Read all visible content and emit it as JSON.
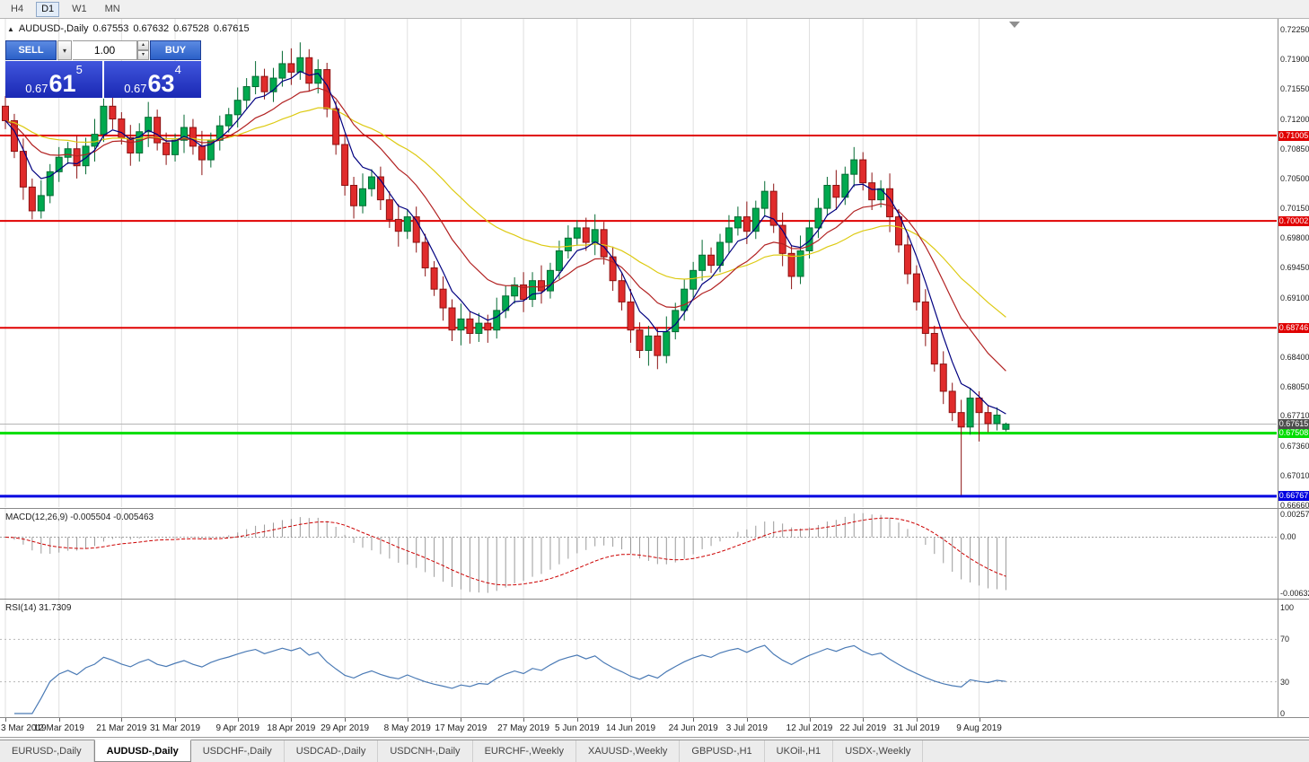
{
  "toolbar": {
    "timeframes": [
      "H4",
      "D1",
      "W1",
      "MN"
    ],
    "active": "D1"
  },
  "chart_header": {
    "marker": "▲",
    "title": "AUDUSD-,Daily",
    "open": "0.67553",
    "high": "0.67632",
    "low": "0.67528",
    "close": "0.67615"
  },
  "trade_panel": {
    "sell_label": "SELL",
    "buy_label": "BUY",
    "volume": "1.00",
    "dropdown_icon": "▾",
    "bid": {
      "prefix": "0.67",
      "big": "61",
      "sup": "5"
    },
    "ask": {
      "prefix": "0.67",
      "big": "63",
      "sup": "4"
    }
  },
  "current_price_tag": "0.67615",
  "macd_panel": {
    "label": "MACD(12,26,9) -0.005504 -0.005463",
    "axis": [
      "0.002574",
      "0.00",
      "-0.00632"
    ]
  },
  "rsi_panel": {
    "label": "RSI(14) 31.7309",
    "axis": [
      "100",
      "70",
      "30",
      "0"
    ],
    "levels": [
      70,
      30
    ]
  },
  "tabs": [
    {
      "label": "EURUSD-,Daily",
      "active": false
    },
    {
      "label": "AUDUSD-,Daily",
      "active": true
    },
    {
      "label": "USDCHF-,Daily",
      "active": false
    },
    {
      "label": "USDCAD-,Daily",
      "active": false
    },
    {
      "label": "USDCNH-,Daily",
      "active": false
    },
    {
      "label": "EURCHF-,Weekly",
      "active": false
    },
    {
      "label": "XAUUSD-,Weekly",
      "active": false
    },
    {
      "label": "GBPUSD-,H1",
      "active": false
    },
    {
      "label": "UKOil-,H1",
      "active": false
    },
    {
      "label": "USDX-,Weekly",
      "active": false
    }
  ],
  "colors": {
    "bull": "#00a94f",
    "bull_edge": "#056a33",
    "bear": "#e02b2b",
    "bear_edge": "#8c1212",
    "ma_fast": "#000080",
    "ma_mid": "#b22222",
    "ma_slow": "#ddca12",
    "macd_hist": "#9a9a9a",
    "macd_signal": "#cc0000",
    "rsi_line": "#4a7ab5",
    "grid": "#e0e0e0",
    "current_line": "#b5b5b5",
    "current_tag_bg": "#4d4d4d"
  },
  "chart_data": {
    "type": "candlestick",
    "symbol": "AUDUSD-",
    "timeframe": "Daily",
    "price_labels": [
      "0.72250",
      "0.71900",
      "0.71550",
      "0.71200",
      "0.70850",
      "0.70500",
      "0.70150",
      "0.69800",
      "0.69450",
      "0.69100",
      "0.68750",
      "0.68400",
      "0.68050",
      "0.67710",
      "0.67360",
      "0.67010",
      "0.66660"
    ],
    "date_ticks": [
      {
        "label": "3 Mar 2019",
        "i": 0
      },
      {
        "label": "12 Mar 2019",
        "i": 6
      },
      {
        "label": "21 Mar 2019",
        "i": 13
      },
      {
        "label": "31 Mar 2019",
        "i": 19
      },
      {
        "label": "9 Apr 2019",
        "i": 26
      },
      {
        "label": "18 Apr 2019",
        "i": 32
      },
      {
        "label": "29 Apr 2019",
        "i": 38
      },
      {
        "label": "8 May 2019",
        "i": 45
      },
      {
        "label": "17 May 2019",
        "i": 51
      },
      {
        "label": "27 May 2019",
        "i": 58
      },
      {
        "label": "5 Jun 2019",
        "i": 64
      },
      {
        "label": "14 Jun 2019",
        "i": 70
      },
      {
        "label": "24 Jun 2019",
        "i": 77
      },
      {
        "label": "3 Jul 2019",
        "i": 83
      },
      {
        "label": "12 Jul 2019",
        "i": 90
      },
      {
        "label": "22 Jul 2019",
        "i": 96
      },
      {
        "label": "31 Jul 2019",
        "i": 102
      },
      {
        "label": "9 Aug 2019",
        "i": 109
      }
    ],
    "levels": [
      {
        "price": 0.71005,
        "label": "0.71005",
        "color": "#e00000",
        "width": 2
      },
      {
        "price": 0.70002,
        "label": "0.70002",
        "color": "#e00000",
        "width": 2
      },
      {
        "price": 0.68746,
        "label": "0.68746",
        "color": "#e00000",
        "width": 2
      },
      {
        "price": 0.67508,
        "label": "0.67508",
        "color": "#00dd00",
        "width": 3
      },
      {
        "price": 0.66767,
        "label": "0.66767",
        "color": "#0000e0",
        "width": 3
      }
    ],
    "current_price": 0.67615,
    "moving_averages": [
      {
        "name": "ma-fast",
        "period": 5,
        "color": "#000080"
      },
      {
        "name": "ma-mid",
        "period": 13,
        "color": "#b22222"
      },
      {
        "name": "ma-slow",
        "period": 30,
        "color": "#ddca12"
      }
    ],
    "macd": {
      "fast": 12,
      "slow": 26,
      "signal": 9,
      "value": -0.005504,
      "signal_value": -0.005463
    },
    "rsi": {
      "period": 14,
      "value": 31.7309
    },
    "candles": [
      [
        0.7135,
        0.7147,
        0.7108,
        0.7118
      ],
      [
        0.7118,
        0.7126,
        0.7074,
        0.7082
      ],
      [
        0.7082,
        0.7097,
        0.7025,
        0.704
      ],
      [
        0.704,
        0.705,
        0.7002,
        0.7012
      ],
      [
        0.7012,
        0.7048,
        0.7003,
        0.703
      ],
      [
        0.703,
        0.7067,
        0.7021,
        0.7058
      ],
      [
        0.7058,
        0.7087,
        0.7046,
        0.7075
      ],
      [
        0.7075,
        0.7093,
        0.7067,
        0.7085
      ],
      [
        0.7085,
        0.71,
        0.705,
        0.7065
      ],
      [
        0.7065,
        0.7098,
        0.7055,
        0.7088
      ],
      [
        0.7088,
        0.712,
        0.707,
        0.7102
      ],
      [
        0.7102,
        0.7144,
        0.7093,
        0.7135
      ],
      [
        0.7135,
        0.7147,
        0.7108,
        0.712
      ],
      [
        0.712,
        0.7128,
        0.709,
        0.7098
      ],
      [
        0.7098,
        0.7113,
        0.7065,
        0.708
      ],
      [
        0.708,
        0.7115,
        0.707,
        0.7105
      ],
      [
        0.7105,
        0.714,
        0.7087,
        0.7122
      ],
      [
        0.7122,
        0.7131,
        0.7083,
        0.7092
      ],
      [
        0.7092,
        0.7104,
        0.7066,
        0.7078
      ],
      [
        0.7078,
        0.7103,
        0.707,
        0.7095
      ],
      [
        0.7095,
        0.7125,
        0.708,
        0.711
      ],
      [
        0.711,
        0.712,
        0.7078,
        0.7088
      ],
      [
        0.7088,
        0.7106,
        0.7054,
        0.7072
      ],
      [
        0.7072,
        0.7104,
        0.7063,
        0.7095
      ],
      [
        0.7095,
        0.7124,
        0.7083,
        0.7112
      ],
      [
        0.7112,
        0.7133,
        0.7104,
        0.7125
      ],
      [
        0.7125,
        0.7157,
        0.711,
        0.7142
      ],
      [
        0.7142,
        0.7168,
        0.7132,
        0.7158
      ],
      [
        0.7158,
        0.7188,
        0.7149,
        0.717
      ],
      [
        0.717,
        0.7179,
        0.7143,
        0.7152
      ],
      [
        0.7152,
        0.718,
        0.714,
        0.7168
      ],
      [
        0.7168,
        0.72,
        0.7158,
        0.7185
      ],
      [
        0.7185,
        0.7203,
        0.716,
        0.7175
      ],
      [
        0.7175,
        0.721,
        0.7166,
        0.7192
      ],
      [
        0.7192,
        0.7202,
        0.7152,
        0.7162
      ],
      [
        0.7162,
        0.719,
        0.715,
        0.7178
      ],
      [
        0.7178,
        0.7186,
        0.7122,
        0.7132
      ],
      [
        0.7132,
        0.7141,
        0.7078,
        0.709
      ],
      [
        0.709,
        0.7102,
        0.703,
        0.7042
      ],
      [
        0.7042,
        0.7052,
        0.7003,
        0.7018
      ],
      [
        0.7018,
        0.7056,
        0.7009,
        0.7038
      ],
      [
        0.7038,
        0.7061,
        0.7029,
        0.7052
      ],
      [
        0.7052,
        0.7064,
        0.7013,
        0.7025
      ],
      [
        0.7025,
        0.7035,
        0.6992,
        0.7002
      ],
      [
        0.7002,
        0.702,
        0.697,
        0.6988
      ],
      [
        0.6988,
        0.7014,
        0.6979,
        0.7005
      ],
      [
        0.7005,
        0.7017,
        0.6963,
        0.6975
      ],
      [
        0.6975,
        0.6985,
        0.6935,
        0.6945
      ],
      [
        0.6945,
        0.6953,
        0.6912,
        0.692
      ],
      [
        0.692,
        0.6935,
        0.6883,
        0.6898
      ],
      [
        0.6898,
        0.6908,
        0.6859,
        0.6872
      ],
      [
        0.6872,
        0.6903,
        0.6854,
        0.6885
      ],
      [
        0.6885,
        0.6894,
        0.6856,
        0.6868
      ],
      [
        0.6868,
        0.6892,
        0.6858,
        0.688
      ],
      [
        0.688,
        0.689,
        0.6857,
        0.6872
      ],
      [
        0.6872,
        0.691,
        0.6862,
        0.6895
      ],
      [
        0.6895,
        0.6924,
        0.6886,
        0.6912
      ],
      [
        0.6912,
        0.6934,
        0.6903,
        0.6925
      ],
      [
        0.6925,
        0.694,
        0.6893,
        0.6908
      ],
      [
        0.6908,
        0.694,
        0.6899,
        0.693
      ],
      [
        0.693,
        0.6948,
        0.6903,
        0.6918
      ],
      [
        0.6918,
        0.6951,
        0.6909,
        0.6942
      ],
      [
        0.6942,
        0.6977,
        0.6932,
        0.6965
      ],
      [
        0.6965,
        0.6995,
        0.6956,
        0.698
      ],
      [
        0.698,
        0.7001,
        0.6971,
        0.6992
      ],
      [
        0.6992,
        0.7004,
        0.6965,
        0.6975
      ],
      [
        0.6975,
        0.7008,
        0.696,
        0.699
      ],
      [
        0.699,
        0.6999,
        0.6949,
        0.6958
      ],
      [
        0.6958,
        0.697,
        0.6918,
        0.693
      ],
      [
        0.693,
        0.694,
        0.6895,
        0.6905
      ],
      [
        0.6905,
        0.692,
        0.6857,
        0.6872
      ],
      [
        0.6872,
        0.6881,
        0.6839,
        0.6848
      ],
      [
        0.6848,
        0.6877,
        0.683,
        0.6865
      ],
      [
        0.6865,
        0.6875,
        0.6826,
        0.6842
      ],
      [
        0.6842,
        0.6888,
        0.6833,
        0.687
      ],
      [
        0.687,
        0.6904,
        0.6861,
        0.6895
      ],
      [
        0.6895,
        0.6932,
        0.6883,
        0.692
      ],
      [
        0.692,
        0.6952,
        0.691,
        0.6942
      ],
      [
        0.6942,
        0.6978,
        0.693,
        0.696
      ],
      [
        0.696,
        0.6969,
        0.6939,
        0.6948
      ],
      [
        0.6948,
        0.6985,
        0.694,
        0.6975
      ],
      [
        0.6975,
        0.7007,
        0.6962,
        0.6992
      ],
      [
        0.6992,
        0.7017,
        0.6983,
        0.7005
      ],
      [
        0.7005,
        0.7023,
        0.6973,
        0.6988
      ],
      [
        0.6988,
        0.7024,
        0.6979,
        0.7015
      ],
      [
        0.7015,
        0.7047,
        0.7005,
        0.7035
      ],
      [
        0.7035,
        0.7044,
        0.6986,
        0.6995
      ],
      [
        0.6995,
        0.701,
        0.6947,
        0.6962
      ],
      [
        0.6962,
        0.6972,
        0.692,
        0.6935
      ],
      [
        0.6935,
        0.6983,
        0.6926,
        0.6965
      ],
      [
        0.6965,
        0.7001,
        0.6956,
        0.6992
      ],
      [
        0.6992,
        0.7027,
        0.698,
        0.7015
      ],
      [
        0.7015,
        0.7052,
        0.7006,
        0.7042
      ],
      [
        0.7042,
        0.706,
        0.7013,
        0.7028
      ],
      [
        0.7028,
        0.7064,
        0.7019,
        0.7055
      ],
      [
        0.7055,
        0.7087,
        0.704,
        0.7072
      ],
      [
        0.7072,
        0.7081,
        0.7036,
        0.7045
      ],
      [
        0.7045,
        0.7057,
        0.7013,
        0.7025
      ],
      [
        0.7025,
        0.7048,
        0.7016,
        0.7038
      ],
      [
        0.7038,
        0.7056,
        0.6987,
        0.7005
      ],
      [
        0.7005,
        0.7014,
        0.6963,
        0.6972
      ],
      [
        0.6972,
        0.6984,
        0.6926,
        0.6938
      ],
      [
        0.6938,
        0.6948,
        0.6895,
        0.6905
      ],
      [
        0.6905,
        0.692,
        0.6853,
        0.6868
      ],
      [
        0.6868,
        0.6877,
        0.6823,
        0.6832
      ],
      [
        0.6832,
        0.6847,
        0.6785,
        0.68
      ],
      [
        0.68,
        0.681,
        0.6765,
        0.6775
      ],
      [
        0.6775,
        0.679,
        0.6678,
        0.6758
      ],
      [
        0.6758,
        0.6804,
        0.6749,
        0.6792
      ],
      [
        0.6792,
        0.68,
        0.6741,
        0.6775
      ],
      [
        0.6775,
        0.6783,
        0.6752,
        0.6762
      ],
      [
        0.6762,
        0.6781,
        0.6754,
        0.6772
      ],
      [
        0.67553,
        0.67632,
        0.67528,
        0.67615
      ]
    ]
  }
}
